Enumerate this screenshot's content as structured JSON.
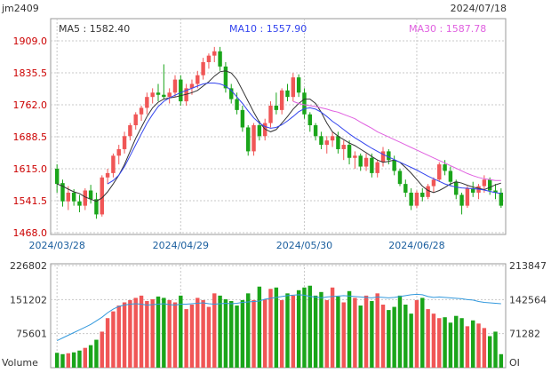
{
  "header": {
    "symbol": "jm2409",
    "date": "2024/07/18"
  },
  "legend": {
    "ma5": "MA5 : 1582.40",
    "ma10": "MA10 : 1557.90",
    "ma30": "MA30 : 1587.78"
  },
  "colors": {
    "up": "#f05656",
    "down": "#1aa51a",
    "ma5": "#333333",
    "ma10": "#3344ee",
    "ma30": "#e060e0",
    "oi": "#3399dd",
    "axis_red": "#cc0000",
    "axis_blue": "#1a5e9e",
    "grid": "#c8c8c8",
    "frame": "#999999"
  },
  "chart_data": [
    {
      "type": "candlestick",
      "title": "jm2409",
      "ylim": [
        1468.0,
        1909.0
      ],
      "y_ticks": [
        "1909.0",
        "1835.5",
        "1762.0",
        "1688.5",
        "1615.0",
        "1541.5",
        "1468.0"
      ],
      "x_ticks": [
        "2024/03/28",
        "2024/04/29",
        "2024/05/30",
        "2024/06/28"
      ],
      "x_tick_index": [
        0,
        22,
        44,
        64
      ],
      "candles": [
        [
          1615,
          1625,
          1560,
          1580
        ],
        [
          1582,
          1590,
          1528,
          1540
        ],
        [
          1540,
          1575,
          1520,
          1560
        ],
        [
          1560,
          1568,
          1530,
          1540
        ],
        [
          1540,
          1555,
          1515,
          1530
        ],
        [
          1530,
          1570,
          1520,
          1565
        ],
        [
          1565,
          1578,
          1535,
          1545
        ],
        [
          1545,
          1560,
          1500,
          1510
        ],
        [
          1510,
          1600,
          1505,
          1595
        ],
        [
          1595,
          1615,
          1580,
          1605
        ],
        [
          1605,
          1650,
          1595,
          1645
        ],
        [
          1645,
          1670,
          1625,
          1660
        ],
        [
          1660,
          1700,
          1650,
          1690
        ],
        [
          1690,
          1720,
          1680,
          1715
        ],
        [
          1715,
          1745,
          1705,
          1740
        ],
        [
          1740,
          1760,
          1725,
          1755
        ],
        [
          1755,
          1790,
          1740,
          1780
        ],
        [
          1780,
          1800,
          1765,
          1790
        ],
        [
          1790,
          1810,
          1770,
          1785
        ],
        [
          1785,
          1855,
          1775,
          1780
        ],
        [
          1780,
          1800,
          1765,
          1790
        ],
        [
          1790,
          1830,
          1780,
          1820
        ],
        [
          1820,
          1830,
          1760,
          1770
        ],
        [
          1770,
          1810,
          1760,
          1800
        ],
        [
          1800,
          1820,
          1785,
          1810
        ],
        [
          1810,
          1840,
          1800,
          1830
        ],
        [
          1830,
          1870,
          1820,
          1860
        ],
        [
          1860,
          1880,
          1845,
          1875
        ],
        [
          1875,
          1895,
          1860,
          1885
        ],
        [
          1885,
          1895,
          1840,
          1850
        ],
        [
          1850,
          1860,
          1790,
          1800
        ],
        [
          1800,
          1810,
          1765,
          1775
        ],
        [
          1775,
          1790,
          1740,
          1750
        ],
        [
          1750,
          1760,
          1700,
          1710
        ],
        [
          1710,
          1715,
          1645,
          1655
        ],
        [
          1655,
          1720,
          1645,
          1715
        ],
        [
          1715,
          1725,
          1680,
          1690
        ],
        [
          1690,
          1730,
          1680,
          1720
        ],
        [
          1720,
          1770,
          1710,
          1760
        ],
        [
          1760,
          1790,
          1740,
          1750
        ],
        [
          1750,
          1800,
          1740,
          1795
        ],
        [
          1795,
          1810,
          1770,
          1780
        ],
        [
          1780,
          1835,
          1770,
          1825
        ],
        [
          1825,
          1832,
          1780,
          1790
        ],
        [
          1790,
          1800,
          1730,
          1740
        ],
        [
          1740,
          1745,
          1700,
          1715
        ],
        [
          1715,
          1720,
          1680,
          1690
        ],
        [
          1690,
          1700,
          1660,
          1670
        ],
        [
          1670,
          1690,
          1650,
          1680
        ],
        [
          1680,
          1700,
          1665,
          1690
        ],
        [
          1690,
          1700,
          1650,
          1660
        ],
        [
          1660,
          1680,
          1635,
          1670
        ],
        [
          1670,
          1680,
          1625,
          1640
        ],
        [
          1640,
          1655,
          1615,
          1645
        ],
        [
          1645,
          1650,
          1610,
          1620
        ],
        [
          1620,
          1650,
          1610,
          1640
        ],
        [
          1640,
          1650,
          1595,
          1605
        ],
        [
          1605,
          1635,
          1595,
          1630
        ],
        [
          1630,
          1665,
          1620,
          1655
        ],
        [
          1655,
          1660,
          1625,
          1635
        ],
        [
          1635,
          1645,
          1600,
          1610
        ],
        [
          1610,
          1615,
          1575,
          1580
        ],
        [
          1580,
          1590,
          1550,
          1560
        ],
        [
          1560,
          1570,
          1520,
          1530
        ],
        [
          1530,
          1565,
          1525,
          1560
        ],
        [
          1560,
          1570,
          1540,
          1550
        ],
        [
          1550,
          1580,
          1545,
          1575
        ],
        [
          1575,
          1595,
          1560,
          1590
        ],
        [
          1590,
          1630,
          1585,
          1625
        ],
        [
          1625,
          1635,
          1600,
          1610
        ],
        [
          1610,
          1620,
          1575,
          1585
        ],
        [
          1585,
          1590,
          1545,
          1555
        ],
        [
          1555,
          1560,
          1510,
          1530
        ],
        [
          1530,
          1575,
          1525,
          1570
        ],
        [
          1570,
          1585,
          1550,
          1560
        ],
        [
          1560,
          1580,
          1545,
          1575
        ],
        [
          1575,
          1600,
          1560,
          1590
        ],
        [
          1590,
          1595,
          1555,
          1565
        ],
        [
          1565,
          1580,
          1545,
          1560
        ],
        [
          1560,
          1570,
          1525,
          1530
        ]
      ],
      "ma5": [
        1580,
        1575,
        1568,
        1562,
        1558,
        1550,
        1545,
        1540,
        1548,
        1562,
        1580,
        1600,
        1625,
        1655,
        1685,
        1710,
        1735,
        1755,
        1768,
        1775,
        1778,
        1780,
        1783,
        1786,
        1790,
        1795,
        1805,
        1815,
        1828,
        1838,
        1840,
        1835,
        1820,
        1795,
        1770,
        1745,
        1722,
        1706,
        1700,
        1705,
        1720,
        1735,
        1752,
        1765,
        1775,
        1775,
        1765,
        1745,
        1720,
        1700,
        1690,
        1682,
        1674,
        1668,
        1660,
        1652,
        1643,
        1635,
        1630,
        1632,
        1635,
        1630,
        1618,
        1605,
        1590,
        1575,
        1565,
        1560,
        1565,
        1572,
        1580,
        1585,
        1582,
        1577,
        1573,
        1570,
        1567,
        1572,
        1578,
        1582
      ],
      "ma10": [
        null,
        null,
        null,
        null,
        null,
        null,
        null,
        null,
        null,
        1580,
        1588,
        1600,
        1620,
        1645,
        1670,
        1695,
        1720,
        1740,
        1758,
        1770,
        1778,
        1784,
        1790,
        1795,
        1800,
        1805,
        1810,
        1812,
        1812,
        1810,
        1805,
        1795,
        1780,
        1765,
        1748,
        1732,
        1720,
        1712,
        1708,
        1710,
        1716,
        1725,
        1735,
        1746,
        1753,
        1755,
        1752,
        1745,
        1735,
        1724,
        1715,
        1705,
        1695,
        1686,
        1678,
        1670,
        1662,
        1655,
        1648,
        1642,
        1636,
        1630,
        1624,
        1618,
        1612,
        1605,
        1598,
        1592,
        1586,
        1580,
        1576,
        1573,
        1571,
        1570,
        1569,
        1568,
        1566,
        1563,
        1560,
        1558
      ],
      "ma30": [
        null,
        null,
        null,
        null,
        null,
        null,
        null,
        null,
        null,
        null,
        null,
        null,
        null,
        null,
        null,
        null,
        null,
        null,
        null,
        null,
        null,
        null,
        null,
        null,
        null,
        null,
        null,
        null,
        null,
        null,
        null,
        null,
        null,
        null,
        null,
        null,
        null,
        null,
        null,
        null,
        null,
        null,
        1770,
        1765,
        1762,
        1760,
        1758,
        1755,
        1752,
        1748,
        1745,
        1740,
        1735,
        1730,
        1722,
        1715,
        1708,
        1700,
        1694,
        1688,
        1682,
        1676,
        1670,
        1664,
        1658,
        1652,
        1646,
        1640,
        1634,
        1628,
        1622,
        1616,
        1610,
        1604,
        1599,
        1595,
        1592,
        1590,
        1588,
        1587.78
      ]
    },
    {
      "type": "bar",
      "title": "Volume / OI",
      "ylabel": "Volume",
      "y2label": "OI",
      "ylim": [
        0,
        226802
      ],
      "y_ticks": [
        "226802",
        "151202",
        "75601"
      ],
      "y2_ticks": [
        "213847",
        "142564",
        "71282"
      ],
      "volume": [
        33000,
        30000,
        32000,
        34000,
        38000,
        44000,
        50000,
        62000,
        80000,
        110000,
        125000,
        138000,
        145000,
        150000,
        155000,
        160000,
        148000,
        152000,
        158000,
        155000,
        150000,
        145000,
        160000,
        130000,
        140000,
        155000,
        150000,
        135000,
        165000,
        160000,
        152000,
        148000,
        138000,
        150000,
        165000,
        150000,
        180000,
        152000,
        175000,
        178000,
        150000,
        165000,
        160000,
        172000,
        178000,
        182000,
        160000,
        168000,
        150000,
        178000,
        158000,
        145000,
        170000,
        155000,
        138000,
        160000,
        148000,
        165000,
        140000,
        128000,
        135000,
        160000,
        140000,
        120000,
        150000,
        155000,
        130000,
        120000,
        110000,
        112000,
        100000,
        115000,
        110000,
        92000,
        105000,
        98000,
        88000,
        70000,
        80000,
        30000
      ],
      "oi": [
        60000,
        66000,
        72000,
        78000,
        84000,
        90000,
        96000,
        104000,
        112000,
        122000,
        130000,
        136000,
        139000,
        141000,
        142000,
        141000,
        139000,
        140000,
        141000,
        142000,
        140000,
        139000,
        141000,
        141000,
        142000,
        143000,
        144000,
        142000,
        141000,
        142000,
        143000,
        142000,
        143000,
        145000,
        146000,
        147000,
        148000,
        152000,
        154000,
        156000,
        158000,
        160000,
        161000,
        162000,
        161000,
        158000,
        157000,
        155000,
        157000,
        158000,
        159000,
        160000,
        159000,
        158000,
        157000,
        156000,
        155000,
        157000,
        156000,
        155000,
        156000,
        158000,
        160000,
        162000,
        163000,
        162000,
        158000,
        156000,
        157000,
        156000,
        155000,
        154000,
        153000,
        151000,
        150000,
        147000,
        145000,
        144000,
        143000,
        142000
      ],
      "colors_from_candles": true
    }
  ]
}
